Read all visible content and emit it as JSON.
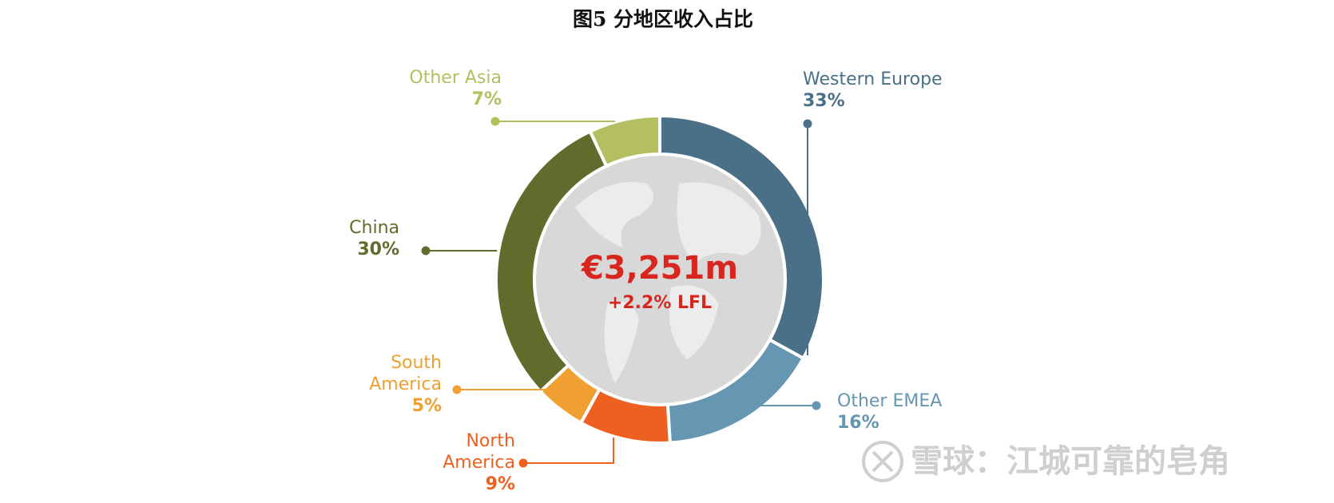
{
  "chart_data": {
    "type": "pie",
    "title": "图5  分地区收入占比",
    "center_title": "€3,251m",
    "center_subtitle": "+2.2% LFL",
    "categories": [
      "Western Europe",
      "Other EMEA",
      "North America",
      "South America",
      "China",
      "Other Asia"
    ],
    "values": [
      33,
      16,
      9,
      5,
      30,
      7
    ],
    "value_labels": [
      "33%",
      "16%",
      "9%",
      "5%",
      "30%",
      "7%"
    ],
    "colors": [
      "#4a7088",
      "#6596b2",
      "#ee6020",
      "#f0a030",
      "#636b2c",
      "#b4bf62"
    ],
    "watermark": "雪球：江城可靠的皂角"
  }
}
